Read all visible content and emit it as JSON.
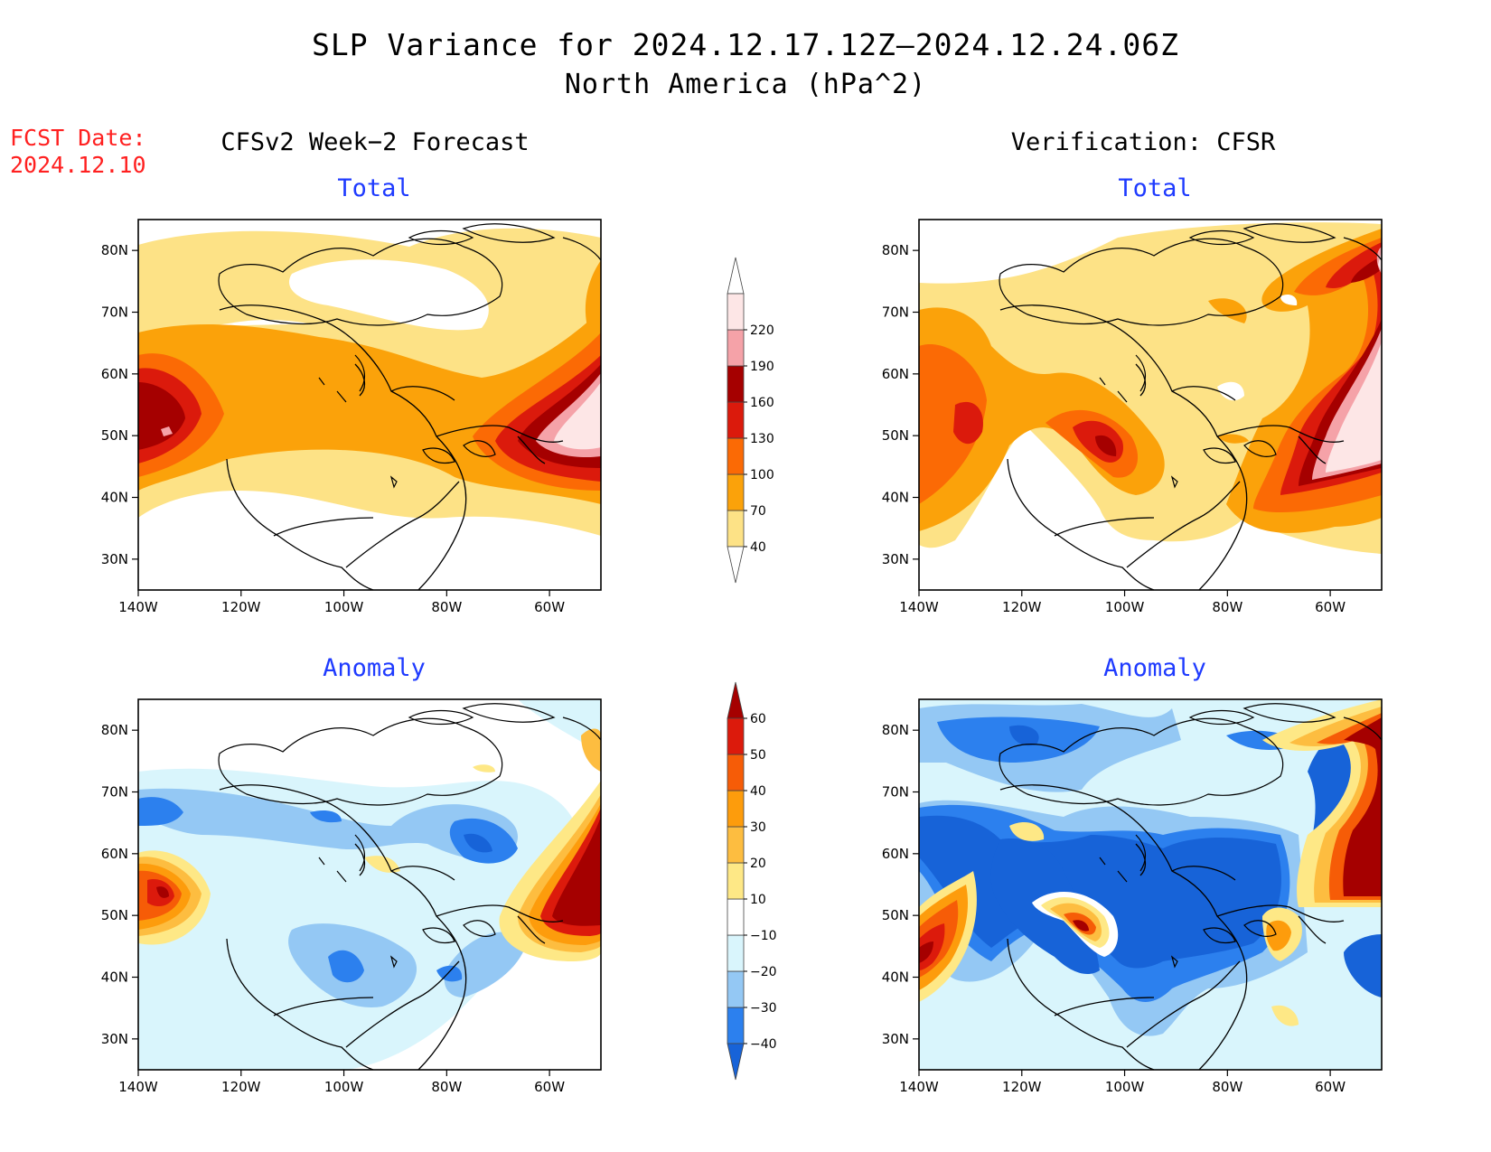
{
  "title": "SLP Variance for 2024.12.17.12Z–2024.12.24.06Z",
  "subtitle": "North America (hPa^2)",
  "fcst_date": {
    "line1": "FCST Date:",
    "line2": "2024.12.10"
  },
  "columns": {
    "left": "CFSv2 Week−2 Forecast",
    "right": "Verification: CFSR"
  },
  "panel_titles": {
    "total": "Total",
    "anomaly": "Anomaly"
  },
  "map": {
    "lon_range": [
      -140,
      -50
    ],
    "lat_range": [
      25,
      85
    ],
    "lon_ticks": [
      {
        "v": -140,
        "label": "140W"
      },
      {
        "v": -120,
        "label": "120W"
      },
      {
        "v": -100,
        "label": "100W"
      },
      {
        "v": -80,
        "label": "80W"
      },
      {
        "v": -60,
        "label": "60W"
      }
    ],
    "lat_ticks": [
      {
        "v": 30,
        "label": "30N"
      },
      {
        "v": 40,
        "label": "40N"
      },
      {
        "v": 50,
        "label": "50N"
      },
      {
        "v": 60,
        "label": "60N"
      },
      {
        "v": 70,
        "label": "70N"
      },
      {
        "v": 80,
        "label": "80N"
      }
    ]
  },
  "total_colorbar": {
    "labels": [
      "40",
      "70",
      "100",
      "130",
      "160",
      "190",
      "220"
    ],
    "colors": [
      "#fde286",
      "#fba20a",
      "#fb6a05",
      "#db1a0c",
      "#a50000",
      "#f5a2a8",
      "#fde6e6"
    ]
  },
  "anomaly_colorbar": {
    "labels": [
      "−40",
      "−30",
      "−20",
      "−10",
      "10",
      "20",
      "30",
      "40",
      "50",
      "60"
    ],
    "colors": [
      "#1763d8",
      "#2c80ee",
      "#94c8f4",
      "#d9f5fc",
      "#ffffff",
      "#fee886",
      "#fdbd40",
      "#fd9c0c",
      "#f65c07",
      "#dc1a0c",
      "#a50000"
    ]
  }
}
